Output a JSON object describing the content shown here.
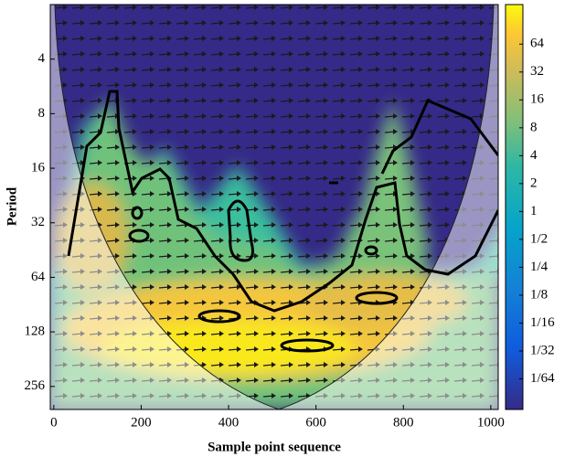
{
  "chart_data": {
    "type": "heatmap",
    "xlabel": "Sample point sequence",
    "ylabel": "Period",
    "xlim": [
      -8,
      1017
    ],
    "xticks": [
      0,
      200,
      400,
      600,
      800,
      1000
    ],
    "yscale": "log2",
    "yinvert": true,
    "ylim": [
      2,
      343
    ],
    "yticks": [
      4,
      8,
      16,
      32,
      64,
      128,
      256
    ],
    "colormap": "parula",
    "cscale": "log2",
    "clim": [
      0.0073,
      171
    ],
    "cticks": [
      64,
      32,
      16,
      8,
      4,
      2,
      1,
      {
        "value": 0.5,
        "label": "1/2"
      },
      {
        "value": 0.25,
        "label": "1/4"
      },
      {
        "value": 0.125,
        "label": "1/8"
      },
      {
        "value": 0.0625,
        "label": "1/16"
      },
      {
        "value": 0.03125,
        "label": "1/32"
      },
      {
        "value": 0.015625,
        "label": "1/64"
      }
    ]
  }
}
